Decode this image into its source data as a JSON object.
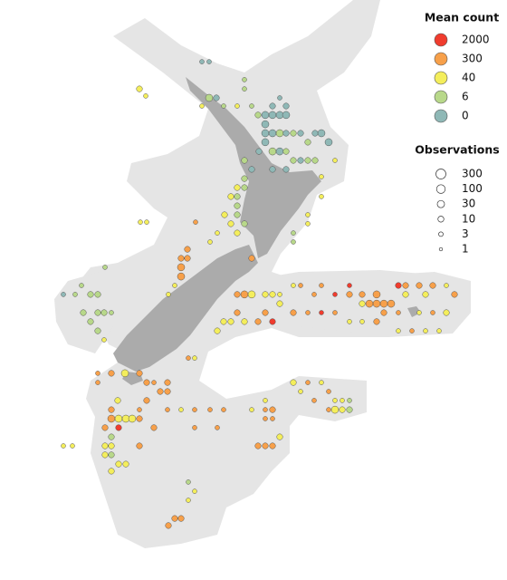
{
  "legend_mean": {
    "title": "Mean count",
    "levels": [
      {
        "value": 2000,
        "color": "#f03c2e"
      },
      {
        "value": 300,
        "color": "#f7a04a"
      },
      {
        "value": 40,
        "color": "#f4ee5c"
      },
      {
        "value": 6,
        "color": "#b8d88a"
      },
      {
        "value": 0,
        "color": "#8fb8b6"
      }
    ]
  },
  "legend_observations": {
    "title": "Observations",
    "levels": [
      300,
      100,
      30,
      10,
      3,
      1
    ]
  },
  "points": [
    {
      "lon": 172.92,
      "lat": -34.27,
      "mean": 0,
      "n": 3
    },
    {
      "lon": 173.24,
      "lat": -34.27,
      "mean": 0,
      "n": 3
    },
    {
      "lon": 170.16,
      "lat": -35.27,
      "mean": 40,
      "n": 10
    },
    {
      "lon": 170.44,
      "lat": -35.53,
      "mean": 40,
      "n": 3
    },
    {
      "lon": 173.24,
      "lat": -35.6,
      "mean": 6,
      "n": 30
    },
    {
      "lon": 173.56,
      "lat": -35.6,
      "mean": 0,
      "n": 10
    },
    {
      "lon": 172.92,
      "lat": -35.9,
      "mean": 40,
      "n": 3
    },
    {
      "lon": 173.88,
      "lat": -35.9,
      "mean": 6,
      "n": 3
    },
    {
      "lon": 174.8,
      "lat": -34.93,
      "mean": 6,
      "n": 3
    },
    {
      "lon": 174.8,
      "lat": -35.27,
      "mean": 6,
      "n": 3
    },
    {
      "lon": 175.12,
      "lat": -35.9,
      "mean": 6,
      "n": 3
    },
    {
      "lon": 174.48,
      "lat": -35.9,
      "mean": 40,
      "n": 3
    },
    {
      "lon": 175.4,
      "lat": -36.23,
      "mean": 6,
      "n": 10
    },
    {
      "lon": 175.72,
      "lat": -36.23,
      "mean": 0,
      "n": 30
    },
    {
      "lon": 176.04,
      "lat": -36.23,
      "mean": 0,
      "n": 30
    },
    {
      "lon": 176.36,
      "lat": -36.23,
      "mean": 0,
      "n": 30
    },
    {
      "lon": 176.64,
      "lat": -36.23,
      "mean": 0,
      "n": 30
    },
    {
      "lon": 176.04,
      "lat": -35.9,
      "mean": 0,
      "n": 10
    },
    {
      "lon": 176.36,
      "lat": -35.6,
      "mean": 0,
      "n": 3
    },
    {
      "lon": 176.64,
      "lat": -35.9,
      "mean": 0,
      "n": 10
    },
    {
      "lon": 175.72,
      "lat": -36.57,
      "mean": 0,
      "n": 30
    },
    {
      "lon": 175.72,
      "lat": -36.9,
      "mean": 0,
      "n": 30
    },
    {
      "lon": 176.04,
      "lat": -36.9,
      "mean": 0,
      "n": 30
    },
    {
      "lon": 176.36,
      "lat": -36.9,
      "mean": 6,
      "n": 30
    },
    {
      "lon": 176.64,
      "lat": -36.9,
      "mean": 0,
      "n": 10
    },
    {
      "lon": 176.96,
      "lat": -36.9,
      "mean": 6,
      "n": 10
    },
    {
      "lon": 177.28,
      "lat": -36.9,
      "mean": 0,
      "n": 10
    },
    {
      "lon": 177.92,
      "lat": -36.9,
      "mean": 0,
      "n": 10
    },
    {
      "lon": 178.2,
      "lat": -36.9,
      "mean": 0,
      "n": 30
    },
    {
      "lon": 177.6,
      "lat": -37.23,
      "mean": 6,
      "n": 10
    },
    {
      "lon": 178.52,
      "lat": -37.23,
      "mean": 0,
      "n": 30
    },
    {
      "lon": 175.72,
      "lat": -37.23,
      "mean": 0,
      "n": 30
    },
    {
      "lon": 176.04,
      "lat": -37.57,
      "mean": 6,
      "n": 30
    },
    {
      "lon": 176.36,
      "lat": -37.57,
      "mean": 0,
      "n": 30
    },
    {
      "lon": 176.64,
      "lat": -37.57,
      "mean": 6,
      "n": 10
    },
    {
      "lon": 175.44,
      "lat": -37.57,
      "mean": 0,
      "n": 10
    },
    {
      "lon": 176.96,
      "lat": -37.9,
      "mean": 6,
      "n": 10
    },
    {
      "lon": 177.28,
      "lat": -37.9,
      "mean": 0,
      "n": 10
    },
    {
      "lon": 177.6,
      "lat": -37.9,
      "mean": 6,
      "n": 10
    },
    {
      "lon": 177.92,
      "lat": -37.9,
      "mean": 6,
      "n": 10
    },
    {
      "lon": 178.8,
      "lat": -37.9,
      "mean": 40,
      "n": 3
    },
    {
      "lon": 174.8,
      "lat": -37.9,
      "mean": 6,
      "n": 10
    },
    {
      "lon": 175.12,
      "lat": -38.23,
      "mean": 0,
      "n": 10
    },
    {
      "lon": 176.04,
      "lat": -38.23,
      "mean": 0,
      "n": 10
    },
    {
      "lon": 176.64,
      "lat": -38.23,
      "mean": 0,
      "n": 10
    },
    {
      "lon": 178.2,
      "lat": -38.5,
      "mean": 40,
      "n": 3
    },
    {
      "lon": 174.8,
      "lat": -38.57,
      "mean": 6,
      "n": 10
    },
    {
      "lon": 174.8,
      "lat": -38.9,
      "mean": 6,
      "n": 10
    },
    {
      "lon": 174.48,
      "lat": -38.9,
      "mean": 40,
      "n": 10
    },
    {
      "lon": 174.2,
      "lat": -39.23,
      "mean": 40,
      "n": 10
    },
    {
      "lon": 174.48,
      "lat": -39.23,
      "mean": 6,
      "n": 10
    },
    {
      "lon": 174.48,
      "lat": -39.57,
      "mean": 6,
      "n": 10
    },
    {
      "lon": 173.92,
      "lat": -39.9,
      "mean": 40,
      "n": 10
    },
    {
      "lon": 174.48,
      "lat": -39.9,
      "mean": 6,
      "n": 10
    },
    {
      "lon": 174.8,
      "lat": -40.23,
      "mean": 6,
      "n": 10
    },
    {
      "lon": 174.2,
      "lat": -40.23,
      "mean": 40,
      "n": 10
    },
    {
      "lon": 174.48,
      "lat": -40.57,
      "mean": 40,
      "n": 10
    },
    {
      "lon": 173.6,
      "lat": -40.57,
      "mean": 40,
      "n": 3
    },
    {
      "lon": 173.28,
      "lat": -40.9,
      "mean": 40,
      "n": 3
    },
    {
      "lon": 172.64,
      "lat": -40.17,
      "mean": 300,
      "n": 3
    },
    {
      "lon": 170.2,
      "lat": -40.17,
      "mean": 40,
      "n": 3
    },
    {
      "lon": 170.48,
      "lat": -40.17,
      "mean": 40,
      "n": 3
    },
    {
      "lon": 178.2,
      "lat": -39.23,
      "mean": 40,
      "n": 3
    },
    {
      "lon": 177.6,
      "lat": -39.9,
      "mean": 40,
      "n": 3
    },
    {
      "lon": 177.6,
      "lat": -40.23,
      "mean": 40,
      "n": 3
    },
    {
      "lon": 176.96,
      "lat": -40.57,
      "mean": 6,
      "n": 3
    },
    {
      "lon": 176.96,
      "lat": -40.9,
      "mean": 6,
      "n": 3
    },
    {
      "lon": 172.28,
      "lat": -41.17,
      "mean": 300,
      "n": 10
    },
    {
      "lon": 172.0,
      "lat": -41.5,
      "mean": 300,
      "n": 10
    },
    {
      "lon": 172.28,
      "lat": -41.5,
      "mean": 300,
      "n": 10
    },
    {
      "lon": 172.0,
      "lat": -41.83,
      "mean": 300,
      "n": 30
    },
    {
      "lon": 172.0,
      "lat": -42.17,
      "mean": 300,
      "n": 30
    },
    {
      "lon": 171.72,
      "lat": -42.5,
      "mean": 40,
      "n": 3
    },
    {
      "lon": 171.44,
      "lat": -42.83,
      "mean": 40,
      "n": 3
    },
    {
      "lon": 175.12,
      "lat": -41.5,
      "mean": 300,
      "n": 10
    },
    {
      "lon": 168.64,
      "lat": -41.83,
      "mean": 6,
      "n": 3
    },
    {
      "lon": 167.6,
      "lat": -42.5,
      "mean": 6,
      "n": 3
    },
    {
      "lon": 168.0,
      "lat": -42.83,
      "mean": 6,
      "n": 10
    },
    {
      "lon": 168.32,
      "lat": -42.83,
      "mean": 6,
      "n": 10
    },
    {
      "lon": 167.32,
      "lat": -42.83,
      "mean": 6,
      "n": 3
    },
    {
      "lon": 166.8,
      "lat": -42.83,
      "mean": 0,
      "n": 3
    },
    {
      "lon": 167.68,
      "lat": -43.5,
      "mean": 6,
      "n": 10
    },
    {
      "lon": 168.32,
      "lat": -43.5,
      "mean": 6,
      "n": 10
    },
    {
      "lon": 168.6,
      "lat": -43.5,
      "mean": 6,
      "n": 10
    },
    {
      "lon": 168.92,
      "lat": -43.5,
      "mean": 6,
      "n": 3
    },
    {
      "lon": 168.0,
      "lat": -43.83,
      "mean": 6,
      "n": 10
    },
    {
      "lon": 168.32,
      "lat": -44.17,
      "mean": 6,
      "n": 10
    },
    {
      "lon": 168.6,
      "lat": -44.5,
      "mean": 40,
      "n": 3
    },
    {
      "lon": 174.48,
      "lat": -42.83,
      "mean": 300,
      "n": 10
    },
    {
      "lon": 174.8,
      "lat": -42.83,
      "mean": 300,
      "n": 30
    },
    {
      "lon": 175.12,
      "lat": -42.83,
      "mean": 40,
      "n": 30
    },
    {
      "lon": 175.72,
      "lat": -42.83,
      "mean": 40,
      "n": 10
    },
    {
      "lon": 176.04,
      "lat": -42.83,
      "mean": 40,
      "n": 10
    },
    {
      "lon": 176.36,
      "lat": -42.83,
      "mean": 40,
      "n": 3
    },
    {
      "lon": 176.96,
      "lat": -42.5,
      "mean": 40,
      "n": 3
    },
    {
      "lon": 177.28,
      "lat": -42.5,
      "mean": 300,
      "n": 3
    },
    {
      "lon": 177.88,
      "lat": -42.83,
      "mean": 300,
      "n": 3
    },
    {
      "lon": 178.2,
      "lat": -42.5,
      "mean": 300,
      "n": 3
    },
    {
      "lon": 178.8,
      "lat": -42.83,
      "mean": 2000,
      "n": 3
    },
    {
      "lon": 179.44,
      "lat": -42.5,
      "mean": 2000,
      "n": 3
    },
    {
      "lon": 180.0,
      "lat": -42.83,
      "mean": 300,
      "n": 10
    },
    {
      "lon": 180.64,
      "lat": -42.83,
      "mean": 300,
      "n": 30
    },
    {
      "lon": 181.6,
      "lat": -42.5,
      "mean": 2000,
      "n": 10
    },
    {
      "lon": 181.92,
      "lat": -42.5,
      "mean": 300,
      "n": 10
    },
    {
      "lon": 182.52,
      "lat": -42.5,
      "mean": 300,
      "n": 10
    },
    {
      "lon": 183.12,
      "lat": -42.5,
      "mean": 300,
      "n": 10
    },
    {
      "lon": 183.72,
      "lat": -42.5,
      "mean": 40,
      "n": 3
    },
    {
      "lon": 184.08,
      "lat": -42.83,
      "mean": 300,
      "n": 10
    },
    {
      "lon": 182.8,
      "lat": -42.83,
      "mean": 40,
      "n": 10
    },
    {
      "lon": 181.92,
      "lat": -42.83,
      "mean": 40,
      "n": 10
    },
    {
      "lon": 181.28,
      "lat": -43.17,
      "mean": 300,
      "n": 30
    },
    {
      "lon": 180.96,
      "lat": -43.17,
      "mean": 300,
      "n": 30
    },
    {
      "lon": 180.64,
      "lat": -43.17,
      "mean": 300,
      "n": 30
    },
    {
      "lon": 180.32,
      "lat": -43.17,
      "mean": 300,
      "n": 30
    },
    {
      "lon": 180.0,
      "lat": -43.17,
      "mean": 40,
      "n": 10
    },
    {
      "lon": 179.44,
      "lat": -42.83,
      "mean": 300,
      "n": 10
    },
    {
      "lon": 176.36,
      "lat": -43.17,
      "mean": 40,
      "n": 10
    },
    {
      "lon": 174.48,
      "lat": -43.5,
      "mean": 300,
      "n": 10
    },
    {
      "lon": 175.72,
      "lat": -43.5,
      "mean": 300,
      "n": 10
    },
    {
      "lon": 176.96,
      "lat": -43.5,
      "mean": 300,
      "n": 10
    },
    {
      "lon": 177.6,
      "lat": -43.5,
      "mean": 300,
      "n": 3
    },
    {
      "lon": 178.2,
      "lat": -43.5,
      "mean": 2000,
      "n": 3
    },
    {
      "lon": 178.8,
      "lat": -43.5,
      "mean": 300,
      "n": 3
    },
    {
      "lon": 180.96,
      "lat": -43.5,
      "mean": 300,
      "n": 10
    },
    {
      "lon": 181.6,
      "lat": -43.5,
      "mean": 300,
      "n": 3
    },
    {
      "lon": 182.52,
      "lat": -43.5,
      "mean": 40,
      "n": 3
    },
    {
      "lon": 183.12,
      "lat": -43.5,
      "mean": 300,
      "n": 3
    },
    {
      "lon": 183.72,
      "lat": -43.5,
      "mean": 40,
      "n": 10
    },
    {
      "lon": 176.04,
      "lat": -43.83,
      "mean": 2000,
      "n": 10
    },
    {
      "lon": 175.4,
      "lat": -43.83,
      "mean": 300,
      "n": 10
    },
    {
      "lon": 174.8,
      "lat": -43.83,
      "mean": 40,
      "n": 10
    },
    {
      "lon": 174.2,
      "lat": -43.83,
      "mean": 40,
      "n": 10
    },
    {
      "lon": 173.88,
      "lat": -43.83,
      "mean": 40,
      "n": 10
    },
    {
      "lon": 179.44,
      "lat": -43.83,
      "mean": 40,
      "n": 3
    },
    {
      "lon": 180.0,
      "lat": -43.83,
      "mean": 40,
      "n": 3
    },
    {
      "lon": 180.64,
      "lat": -43.83,
      "mean": 300,
      "n": 10
    },
    {
      "lon": 173.6,
      "lat": -44.17,
      "mean": 40,
      "n": 10
    },
    {
      "lon": 181.6,
      "lat": -44.17,
      "mean": 40,
      "n": 3
    },
    {
      "lon": 182.2,
      "lat": -44.17,
      "mean": 300,
      "n": 3
    },
    {
      "lon": 182.8,
      "lat": -44.17,
      "mean": 40,
      "n": 3
    },
    {
      "lon": 183.4,
      "lat": -44.17,
      "mean": 40,
      "n": 3
    },
    {
      "lon": 172.32,
      "lat": -45.17,
      "mean": 300,
      "n": 3
    },
    {
      "lon": 172.6,
      "lat": -45.17,
      "mean": 40,
      "n": 3
    },
    {
      "lon": 168.32,
      "lat": -45.73,
      "mean": 300,
      "n": 3
    },
    {
      "lon": 168.92,
      "lat": -45.73,
      "mean": 300,
      "n": 10
    },
    {
      "lon": 169.52,
      "lat": -45.73,
      "mean": 40,
      "n": 30
    },
    {
      "lon": 170.16,
      "lat": -45.73,
      "mean": 300,
      "n": 10
    },
    {
      "lon": 168.32,
      "lat": -46.07,
      "mean": 300,
      "n": 3
    },
    {
      "lon": 170.48,
      "lat": -46.07,
      "mean": 300,
      "n": 10
    },
    {
      "lon": 170.8,
      "lat": -46.07,
      "mean": 300,
      "n": 3
    },
    {
      "lon": 171.4,
      "lat": -46.07,
      "mean": 300,
      "n": 10
    },
    {
      "lon": 171.08,
      "lat": -46.4,
      "mean": 300,
      "n": 10
    },
    {
      "lon": 171.4,
      "lat": -46.4,
      "mean": 300,
      "n": 10
    },
    {
      "lon": 170.48,
      "lat": -46.73,
      "mean": 300,
      "n": 10
    },
    {
      "lon": 169.2,
      "lat": -46.73,
      "mean": 40,
      "n": 10
    },
    {
      "lon": 168.92,
      "lat": -47.07,
      "mean": 300,
      "n": 10
    },
    {
      "lon": 170.16,
      "lat": -47.07,
      "mean": 300,
      "n": 3
    },
    {
      "lon": 168.92,
      "lat": -47.4,
      "mean": 300,
      "n": 30
    },
    {
      "lon": 169.24,
      "lat": -47.4,
      "mean": 40,
      "n": 30
    },
    {
      "lon": 169.56,
      "lat": -47.4,
      "mean": 40,
      "n": 30
    },
    {
      "lon": 169.84,
      "lat": -47.4,
      "mean": 40,
      "n": 30
    },
    {
      "lon": 170.16,
      "lat": -47.4,
      "mean": 300,
      "n": 10
    },
    {
      "lon": 168.64,
      "lat": -47.73,
      "mean": 300,
      "n": 10
    },
    {
      "lon": 169.24,
      "lat": -47.73,
      "mean": 2000,
      "n": 10
    },
    {
      "lon": 170.8,
      "lat": -47.73,
      "mean": 300,
      "n": 10
    },
    {
      "lon": 168.92,
      "lat": -48.07,
      "mean": 6,
      "n": 10
    },
    {
      "lon": 168.64,
      "lat": -48.4,
      "mean": 40,
      "n": 10
    },
    {
      "lon": 168.92,
      "lat": -48.4,
      "mean": 40,
      "n": 10
    },
    {
      "lon": 170.16,
      "lat": -48.4,
      "mean": 300,
      "n": 10
    },
    {
      "lon": 168.64,
      "lat": -48.73,
      "mean": 40,
      "n": 10
    },
    {
      "lon": 168.92,
      "lat": -48.73,
      "mean": 6,
      "n": 10
    },
    {
      "lon": 169.24,
      "lat": -49.07,
      "mean": 40,
      "n": 10
    },
    {
      "lon": 169.56,
      "lat": -49.07,
      "mean": 40,
      "n": 10
    },
    {
      "lon": 168.92,
      "lat": -49.33,
      "mean": 40,
      "n": 10
    },
    {
      "lon": 167.2,
      "lat": -48.4,
      "mean": 40,
      "n": 3
    },
    {
      "lon": 166.8,
      "lat": -48.4,
      "mean": 40,
      "n": 3
    },
    {
      "lon": 171.4,
      "lat": -47.07,
      "mean": 300,
      "n": 3
    },
    {
      "lon": 172.0,
      "lat": -47.07,
      "mean": 40,
      "n": 3
    },
    {
      "lon": 172.6,
      "lat": -47.07,
      "mean": 300,
      "n": 3
    },
    {
      "lon": 173.28,
      "lat": -47.07,
      "mean": 300,
      "n": 3
    },
    {
      "lon": 173.88,
      "lat": -47.07,
      "mean": 300,
      "n": 3
    },
    {
      "lon": 175.12,
      "lat": -47.07,
      "mean": 40,
      "n": 3
    },
    {
      "lon": 175.72,
      "lat": -47.07,
      "mean": 300,
      "n": 3
    },
    {
      "lon": 176.04,
      "lat": -47.07,
      "mean": 300,
      "n": 10
    },
    {
      "lon": 172.6,
      "lat": -47.73,
      "mean": 300,
      "n": 3
    },
    {
      "lon": 173.6,
      "lat": -47.73,
      "mean": 300,
      "n": 3
    },
    {
      "lon": 175.72,
      "lat": -47.4,
      "mean": 300,
      "n": 3
    },
    {
      "lon": 176.04,
      "lat": -47.4,
      "mean": 300,
      "n": 3
    },
    {
      "lon": 176.36,
      "lat": -48.07,
      "mean": 40,
      "n": 10
    },
    {
      "lon": 175.4,
      "lat": -48.4,
      "mean": 300,
      "n": 10
    },
    {
      "lon": 175.72,
      "lat": -48.4,
      "mean": 300,
      "n": 10
    },
    {
      "lon": 176.04,
      "lat": -48.4,
      "mean": 300,
      "n": 10
    },
    {
      "lon": 172.32,
      "lat": -49.73,
      "mean": 6,
      "n": 3
    },
    {
      "lon": 172.6,
      "lat": -50.07,
      "mean": 40,
      "n": 3
    },
    {
      "lon": 172.32,
      "lat": -50.4,
      "mean": 40,
      "n": 3
    },
    {
      "lon": 171.44,
      "lat": -51.33,
      "mean": 300,
      "n": 10
    },
    {
      "lon": 171.72,
      "lat": -51.07,
      "mean": 300,
      "n": 10
    },
    {
      "lon": 172.0,
      "lat": -51.07,
      "mean": 300,
      "n": 10
    },
    {
      "lon": 176.96,
      "lat": -46.07,
      "mean": 40,
      "n": 10
    },
    {
      "lon": 177.6,
      "lat": -46.07,
      "mean": 300,
      "n": 3
    },
    {
      "lon": 178.2,
      "lat": -46.07,
      "mean": 40,
      "n": 3
    },
    {
      "lon": 177.28,
      "lat": -46.4,
      "mean": 40,
      "n": 3
    },
    {
      "lon": 178.52,
      "lat": -46.4,
      "mean": 300,
      "n": 3
    },
    {
      "lon": 177.88,
      "lat": -46.73,
      "mean": 300,
      "n": 3
    },
    {
      "lon": 178.8,
      "lat": -46.73,
      "mean": 40,
      "n": 3
    },
    {
      "lon": 179.12,
      "lat": -46.73,
      "mean": 40,
      "n": 3
    },
    {
      "lon": 179.44,
      "lat": -46.73,
      "mean": 6,
      "n": 3
    },
    {
      "lon": 178.8,
      "lat": -47.07,
      "mean": 40,
      "n": 30
    },
    {
      "lon": 179.12,
      "lat": -47.07,
      "mean": 40,
      "n": 10
    },
    {
      "lon": 179.44,
      "lat": -47.07,
      "mean": 6,
      "n": 10
    },
    {
      "lon": 178.52,
      "lat": -47.07,
      "mean": 300,
      "n": 3
    },
    {
      "lon": 175.72,
      "lat": -46.73,
      "mean": 40,
      "n": 3
    }
  ]
}
